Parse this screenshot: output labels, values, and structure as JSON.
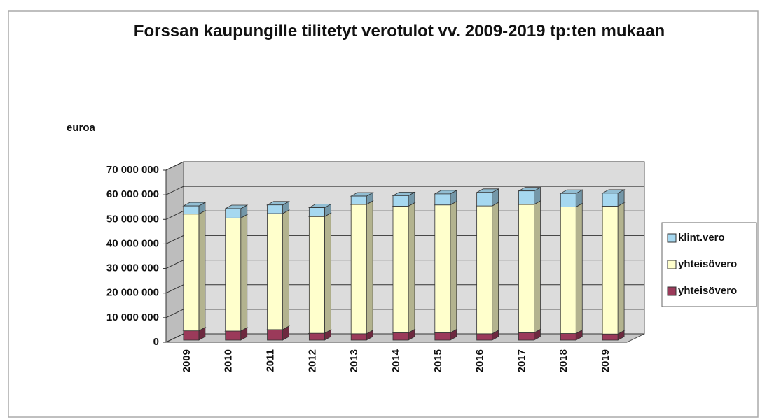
{
  "chart_data": {
    "type": "bar3d_stacked",
    "title": "Forssan kaupungille tilitetyt verotulot vv. 2009-2019 tp:ten mukaan",
    "y_label": "euroa",
    "categories": [
      "2009",
      "2010",
      "2011",
      "2012",
      "2013",
      "2014",
      "2015",
      "2016",
      "2017",
      "2018",
      "2019"
    ],
    "series": [
      {
        "name": "yhteisövero",
        "color": "#9b3a5a",
        "values": [
          3800000,
          3700000,
          4300000,
          2800000,
          2600000,
          3000000,
          3000000,
          2600000,
          3000000,
          2700000,
          2500000
        ]
      },
      {
        "name": "yhteisövero",
        "color": "#ffffcc",
        "values": [
          47500000,
          46000000,
          47200000,
          47500000,
          52600000,
          51500000,
          52000000,
          52000000,
          52200000,
          51500000,
          52000000
        ]
      },
      {
        "name": "klint.vero",
        "color": "#a6d8f0",
        "values": [
          3300000,
          3800000,
          3500000,
          3600000,
          3400000,
          4300000,
          4500000,
          5500000,
          5500000,
          5500000,
          5300000
        ]
      }
    ],
    "ylim": [
      0,
      70000000
    ],
    "yticks": [
      0,
      {
        "value": 10000000,
        "label": "10 000 000"
      },
      {
        "value": 20000000,
        "label": "20 000 000"
      },
      {
        "value": 30000000,
        "label": "30 000 000"
      },
      {
        "value": 40000000,
        "label": "40 000 000"
      },
      {
        "value": 50000000,
        "label": "50 000 000"
      },
      {
        "value": 60000000,
        "label": "60 000 000"
      },
      {
        "value": 70000000,
        "label": "70 000 000"
      }
    ],
    "grid": true,
    "legend": "right"
  }
}
